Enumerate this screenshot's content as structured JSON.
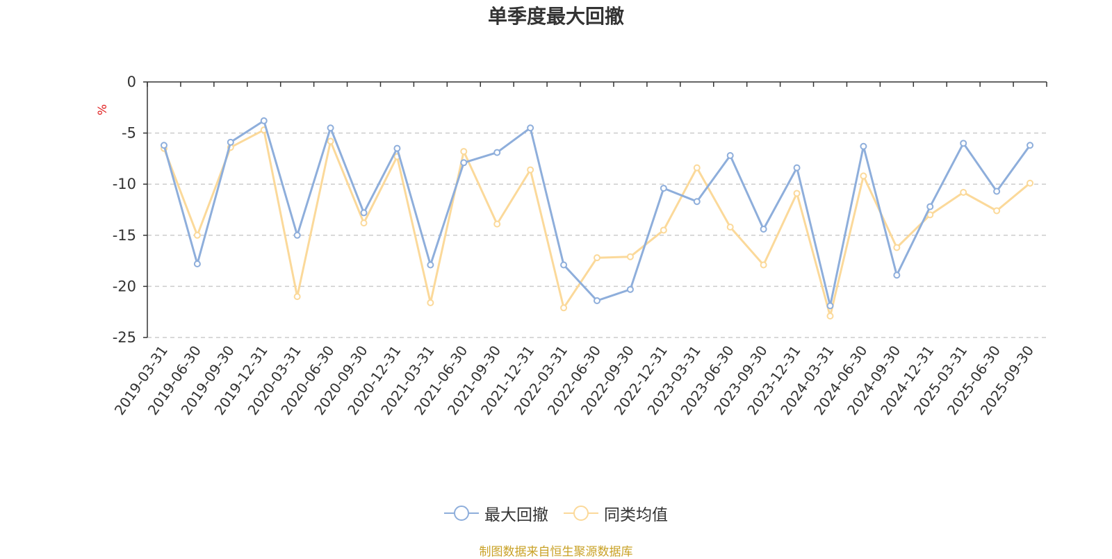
{
  "chart_data": {
    "type": "line",
    "title": "单季度最大回撤",
    "ylabel": "%",
    "xlabel": "",
    "ylim": [
      -25,
      0
    ],
    "yticks": [
      0,
      -5,
      -10,
      -15,
      -20,
      -25
    ],
    "grid": true,
    "legend_position": "bottom-center",
    "categories": [
      "2019-03-31",
      "2019-06-30",
      "2019-09-30",
      "2019-12-31",
      "2020-03-31",
      "2020-06-30",
      "2020-09-30",
      "2020-12-31",
      "2021-03-31",
      "2021-06-30",
      "2021-09-30",
      "2021-12-31",
      "2022-03-31",
      "2022-06-30",
      "2022-09-30",
      "2022-12-31",
      "2023-03-31",
      "2023-06-30",
      "2023-09-30",
      "2023-12-31",
      "2024-03-31",
      "2024-06-30",
      "2024-09-30",
      "2024-12-31",
      "2025-03-31",
      "2025-06-30",
      "2025-09-30"
    ],
    "series": [
      {
        "name": "最大回撤",
        "color": "#8eaedb",
        "values": [
          -6.2,
          -17.8,
          -5.9,
          -3.8,
          -15.0,
          -4.5,
          -12.8,
          -6.5,
          -17.9,
          -7.9,
          -6.9,
          -4.5,
          -17.9,
          -21.4,
          -20.3,
          -10.4,
          -11.7,
          -7.2,
          -14.4,
          -8.4,
          -21.9,
          -6.3,
          -18.9,
          -12.2,
          -6.0,
          -10.7,
          -6.2
        ]
      },
      {
        "name": "同类均值",
        "color": "#fbd99a",
        "values": [
          -6.5,
          -15.0,
          -6.4,
          -4.7,
          -21.0,
          -5.8,
          -13.8,
          -7.3,
          -21.6,
          -6.8,
          -13.9,
          -8.6,
          -22.1,
          -17.2,
          -17.1,
          -14.5,
          -8.4,
          -14.2,
          -17.9,
          -10.9,
          -22.9,
          -9.2,
          -16.2,
          -13.0,
          -10.8,
          -12.6,
          -9.9
        ]
      }
    ],
    "source": "制图数据来自恒生聚源数据库"
  }
}
